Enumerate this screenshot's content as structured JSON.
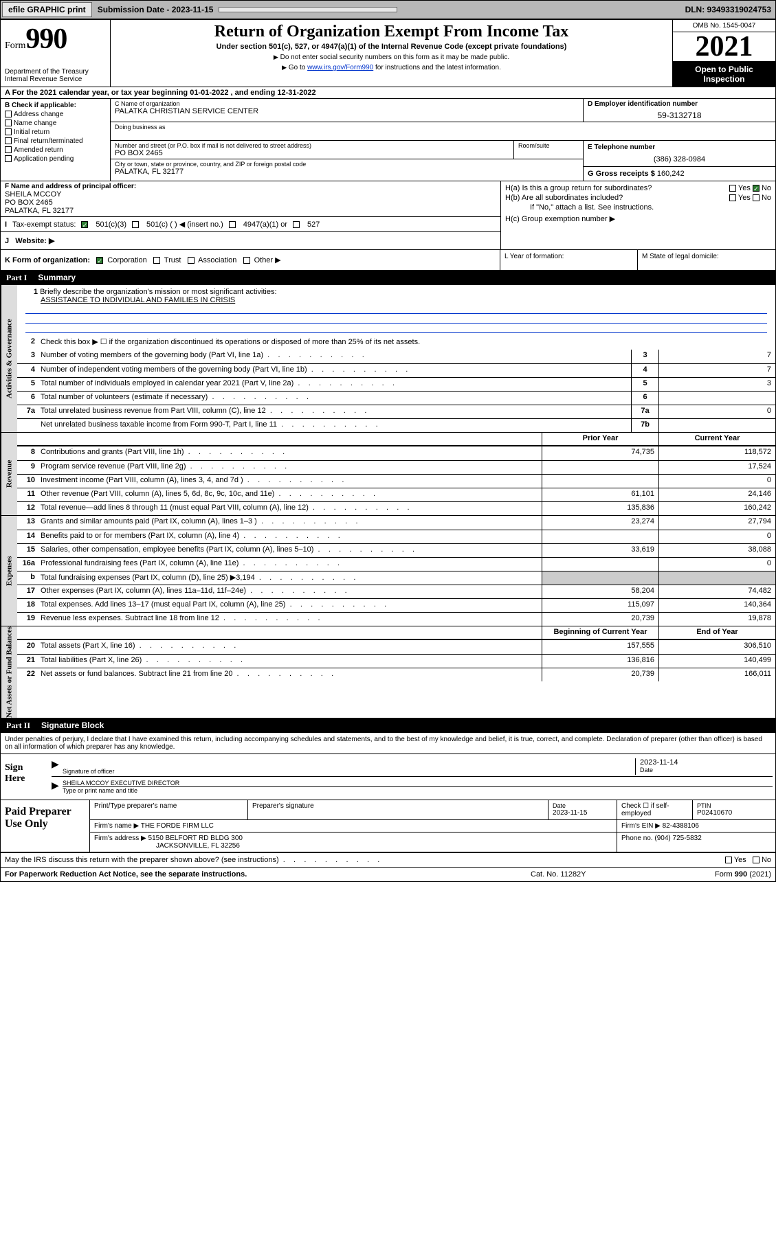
{
  "topbar": {
    "efile": "efile GRAPHIC print",
    "sub_label": "Submission Date - 2023-11-15",
    "dln": "DLN: 93493319024753"
  },
  "header": {
    "form_word": "Form",
    "form_num": "990",
    "dept": "Department of the Treasury\nInternal Revenue Service",
    "title": "Return of Organization Exempt From Income Tax",
    "subtitle": "Under section 501(c), 527, or 4947(a)(1) of the Internal Revenue Code (except private foundations)",
    "note1": "Do not enter social security numbers on this form as it may be made public.",
    "note2_pre": "Go to ",
    "note2_link": "www.irs.gov/Form990",
    "note2_post": " for instructions and the latest information.",
    "omb": "OMB No. 1545-0047",
    "year": "2021",
    "open": "Open to Public Inspection"
  },
  "row_a": "For the 2021 calendar year, or tax year beginning 01-01-2022  , and ending 12-31-2022",
  "box_b": {
    "title": "B Check if applicable:",
    "items": [
      "Address change",
      "Name change",
      "Initial return",
      "Final return/terminated",
      "Amended return",
      "Application pending"
    ]
  },
  "box_c": {
    "name_lbl": "C Name of organization",
    "name_val": "PALATKA CHRISTIAN SERVICE CENTER",
    "dba_lbl": "Doing business as",
    "street_lbl": "Number and street (or P.O. box if mail is not delivered to street address)",
    "room_lbl": "Room/suite",
    "street_val": "PO BOX 2465",
    "city_lbl": "City or town, state or province, country, and ZIP or foreign postal code",
    "city_val": "PALATKA, FL  32177"
  },
  "box_d": {
    "lbl": "D Employer identification number",
    "val": "59-3132718"
  },
  "box_e": {
    "lbl": "E Telephone number",
    "val": "(386) 328-0984"
  },
  "box_g": {
    "lbl": "G Gross receipts $ ",
    "val": "160,242"
  },
  "box_f": {
    "lbl": "F Name and address of principal officer:",
    "line1": "SHEILA MCCOY",
    "line2": "PO BOX 2465",
    "line3": "PALATKA, FL  32177"
  },
  "box_h": {
    "ha": "H(a)  Is this a group return for subordinates?",
    "hb": "H(b)  Are all subordinates included?",
    "hb_note": "If \"No,\" attach a list. See instructions.",
    "hc": "H(c)  Group exemption number ▶",
    "yes": "Yes",
    "no": "No"
  },
  "box_i": {
    "lbl": "Tax-exempt status:",
    "opt1": "501(c)(3)",
    "opt2": "501(c) (   ) ◀ (insert no.)",
    "opt3": "4947(a)(1) or",
    "opt4": "527"
  },
  "box_j": {
    "lbl": "Website: ▶"
  },
  "box_k": {
    "lbl": "K Form of organization:",
    "opts": [
      "Corporation",
      "Trust",
      "Association",
      "Other ▶"
    ]
  },
  "box_l": "L Year of formation:",
  "box_m": "M State of legal domicile:",
  "part1": {
    "num": "Part I",
    "title": "Summary"
  },
  "vtabs": {
    "gov": "Activities & Governance",
    "rev": "Revenue",
    "exp": "Expenses",
    "net": "Net Assets or Fund Balances"
  },
  "gov_rows": {
    "r1": "Briefly describe the organization's mission or most significant activities:",
    "r1_val": "ASSISTANCE TO INDIVIDUAL AND FAMILIES IN CRISIS",
    "r2": "Check this box ▶ ☐  if the organization discontinued its operations or disposed of more than 25% of its net assets.",
    "r3": "Number of voting members of the governing body (Part VI, line 1a)",
    "r4": "Number of independent voting members of the governing body (Part VI, line 1b)",
    "r5": "Total number of individuals employed in calendar year 2021 (Part V, line 2a)",
    "r6": "Total number of volunteers (estimate if necessary)",
    "r7a": "Total unrelated business revenue from Part VIII, column (C), line 12",
    "r7b": "Net unrelated business taxable income from Form 990-T, Part I, line 11",
    "v3": "7",
    "v4": "7",
    "v5": "3",
    "v6": "",
    "v7a": "0",
    "v7b": ""
  },
  "col_heads": {
    "prior": "Prior Year",
    "curr": "Current Year",
    "beg": "Beginning of Current Year",
    "end": "End of Year"
  },
  "rev_rows": [
    {
      "n": "8",
      "t": "Contributions and grants (Part VIII, line 1h)",
      "p": "74,735",
      "c": "118,572"
    },
    {
      "n": "9",
      "t": "Program service revenue (Part VIII, line 2g)",
      "p": "",
      "c": "17,524"
    },
    {
      "n": "10",
      "t": "Investment income (Part VIII, column (A), lines 3, 4, and 7d )",
      "p": "",
      "c": "0"
    },
    {
      "n": "11",
      "t": "Other revenue (Part VIII, column (A), lines 5, 6d, 8c, 9c, 10c, and 11e)",
      "p": "61,101",
      "c": "24,146"
    },
    {
      "n": "12",
      "t": "Total revenue—add lines 8 through 11 (must equal Part VIII, column (A), line 12)",
      "p": "135,836",
      "c": "160,242"
    }
  ],
  "exp_rows": [
    {
      "n": "13",
      "t": "Grants and similar amounts paid (Part IX, column (A), lines 1–3 )",
      "p": "23,274",
      "c": "27,794"
    },
    {
      "n": "14",
      "t": "Benefits paid to or for members (Part IX, column (A), line 4)",
      "p": "",
      "c": "0"
    },
    {
      "n": "15",
      "t": "Salaries, other compensation, employee benefits (Part IX, column (A), lines 5–10)",
      "p": "33,619",
      "c": "38,088"
    },
    {
      "n": "16a",
      "t": "Professional fundraising fees (Part IX, column (A), line 11e)",
      "p": "",
      "c": "0"
    },
    {
      "n": "b",
      "t": "Total fundraising expenses (Part IX, column (D), line 25) ▶3,194",
      "p": "shade",
      "c": "shade"
    },
    {
      "n": "17",
      "t": "Other expenses (Part IX, column (A), lines 11a–11d, 11f–24e)",
      "p": "58,204",
      "c": "74,482"
    },
    {
      "n": "18",
      "t": "Total expenses. Add lines 13–17 (must equal Part IX, column (A), line 25)",
      "p": "115,097",
      "c": "140,364"
    },
    {
      "n": "19",
      "t": "Revenue less expenses. Subtract line 18 from line 12",
      "p": "20,739",
      "c": "19,878"
    }
  ],
  "net_rows": [
    {
      "n": "20",
      "t": "Total assets (Part X, line 16)",
      "p": "157,555",
      "c": "306,510"
    },
    {
      "n": "21",
      "t": "Total liabilities (Part X, line 26)",
      "p": "136,816",
      "c": "140,499"
    },
    {
      "n": "22",
      "t": "Net assets or fund balances. Subtract line 21 from line 20",
      "p": "20,739",
      "c": "166,011"
    }
  ],
  "part2": {
    "num": "Part II",
    "title": "Signature Block"
  },
  "perjury": "Under penalties of perjury, I declare that I have examined this return, including accompanying schedules and statements, and to the best of my knowledge and belief, it is true, correct, and complete. Declaration of preparer (other than officer) is based on all information of which preparer has any knowledge.",
  "sign": {
    "here": "Sign Here",
    "sig_lbl": "Signature of officer",
    "date_lbl": "Date",
    "date_val": "2023-11-14",
    "name_val": "SHEILA MCCOY  EXECUTIVE DIRECTOR",
    "name_lbl": "Type or print name and title"
  },
  "prep": {
    "title": "Paid Preparer Use Only",
    "r1": {
      "c1": "Print/Type preparer's name",
      "c2": "Preparer's signature",
      "c3_lbl": "Date",
      "c3_val": "2023-11-15",
      "c4": "Check ☐ if self-employed",
      "c5_lbl": "PTIN",
      "c5_val": "P02410670"
    },
    "r2": {
      "c1_lbl": "Firm's name    ▶",
      "c1_val": "THE FORDE FIRM LLC",
      "c2_lbl": "Firm's EIN ▶",
      "c2_val": "82-4388106"
    },
    "r3": {
      "c1_lbl": "Firm's address ▶",
      "c1_val1": "5150 BELFORT RD BLDG 300",
      "c1_val2": "JACKSONVILLE, FL  32256",
      "c2_lbl": "Phone no.",
      "c2_val": "(904) 725-5832"
    }
  },
  "discuss": "May the IRS discuss this return with the preparer shown above? (see instructions)",
  "footer": {
    "left": "For Paperwork Reduction Act Notice, see the separate instructions.",
    "mid": "Cat. No. 11282Y",
    "right": "Form 990 (2021)"
  }
}
